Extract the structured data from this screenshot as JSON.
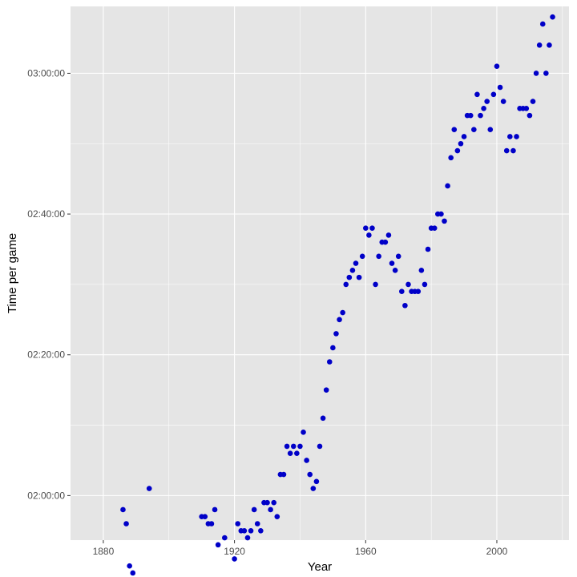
{
  "chart_data": {
    "type": "scatter",
    "title": "",
    "xlabel": "Year",
    "ylabel": "Time per game",
    "xlim": [
      1870,
      2022
    ],
    "ylim": [
      6820,
      11370
    ],
    "x_ticks": [
      1880,
      1920,
      1960,
      2000
    ],
    "x_tick_labels": [
      "1880",
      "1920",
      "1960",
      "2000"
    ],
    "x_minor_ticks": [
      1900,
      1940,
      1980,
      2020
    ],
    "y_ticks": [
      7200,
      8400,
      9600,
      10800
    ],
    "y_tick_labels": [
      "02:00:00",
      "02:20:00",
      "02:40:00",
      "03:00:00"
    ],
    "y_minor_ticks": [
      6600,
      7800,
      9000,
      10200,
      11400
    ],
    "y_unit": "seconds (displayed as hh:mm:ss)",
    "grid": true,
    "colors": {
      "panel_background": "#e5e5e5",
      "grid": "#ffffff",
      "point": "#0000c8",
      "tick": "#333333"
    },
    "series": [
      {
        "points": [
          [
            1886,
            7080
          ],
          [
            1887,
            6960
          ],
          [
            1888,
            6600
          ],
          [
            1889,
            6540
          ],
          [
            1894,
            7260
          ],
          [
            1910,
            7020
          ],
          [
            1911,
            7020
          ],
          [
            1912,
            6960
          ],
          [
            1913,
            6960
          ],
          [
            1914,
            7080
          ],
          [
            1915,
            6780
          ],
          [
            1917,
            6840
          ],
          [
            1920,
            6660
          ],
          [
            1921,
            6960
          ],
          [
            1922,
            6900
          ],
          [
            1923,
            6900
          ],
          [
            1924,
            6840
          ],
          [
            1925,
            6900
          ],
          [
            1926,
            7080
          ],
          [
            1927,
            6960
          ],
          [
            1928,
            6900
          ],
          [
            1929,
            7140
          ],
          [
            1930,
            7140
          ],
          [
            1931,
            7080
          ],
          [
            1932,
            7140
          ],
          [
            1933,
            7020
          ],
          [
            1934,
            7380
          ],
          [
            1935,
            7380
          ],
          [
            1936,
            7620
          ],
          [
            1937,
            7560
          ],
          [
            1938,
            7620
          ],
          [
            1939,
            7560
          ],
          [
            1940,
            7620
          ],
          [
            1941,
            7740
          ],
          [
            1942,
            7500
          ],
          [
            1943,
            7380
          ],
          [
            1944,
            7260
          ],
          [
            1945,
            7320
          ],
          [
            1946,
            7620
          ],
          [
            1947,
            7860
          ],
          [
            1948,
            8100
          ],
          [
            1949,
            8340
          ],
          [
            1950,
            8460
          ],
          [
            1951,
            8580
          ],
          [
            1952,
            8700
          ],
          [
            1953,
            8760
          ],
          [
            1954,
            9000
          ],
          [
            1955,
            9060
          ],
          [
            1956,
            9120
          ],
          [
            1957,
            9180
          ],
          [
            1958,
            9060
          ],
          [
            1959,
            9240
          ],
          [
            1960,
            9480
          ],
          [
            1961,
            9420
          ],
          [
            1962,
            9480
          ],
          [
            1963,
            9000
          ],
          [
            1964,
            9240
          ],
          [
            1965,
            9360
          ],
          [
            1966,
            9360
          ],
          [
            1967,
            9420
          ],
          [
            1968,
            9180
          ],
          [
            1969,
            9120
          ],
          [
            1970,
            9240
          ],
          [
            1971,
            8940
          ],
          [
            1972,
            8820
          ],
          [
            1973,
            9000
          ],
          [
            1974,
            8940
          ],
          [
            1975,
            8940
          ],
          [
            1976,
            8940
          ],
          [
            1977,
            9120
          ],
          [
            1978,
            9000
          ],
          [
            1979,
            9300
          ],
          [
            1980,
            9480
          ],
          [
            1981,
            9480
          ],
          [
            1982,
            9600
          ],
          [
            1983,
            9600
          ],
          [
            1984,
            9540
          ],
          [
            1985,
            9840
          ],
          [
            1986,
            10080
          ],
          [
            1987,
            10320
          ],
          [
            1988,
            10140
          ],
          [
            1989,
            10200
          ],
          [
            1990,
            10260
          ],
          [
            1991,
            10440
          ],
          [
            1992,
            10440
          ],
          [
            1993,
            10320
          ],
          [
            1994,
            10620
          ],
          [
            1995,
            10440
          ],
          [
            1996,
            10500
          ],
          [
            1997,
            10560
          ],
          [
            1998,
            10320
          ],
          [
            1999,
            10620
          ],
          [
            2000,
            10860
          ],
          [
            2001,
            10680
          ],
          [
            2002,
            10560
          ],
          [
            2003,
            10140
          ],
          [
            2004,
            10260
          ],
          [
            2005,
            10140
          ],
          [
            2006,
            10260
          ],
          [
            2007,
            10500
          ],
          [
            2008,
            10500
          ],
          [
            2009,
            10500
          ],
          [
            2010,
            10440
          ],
          [
            2011,
            10560
          ],
          [
            2012,
            10800
          ],
          [
            2013,
            11040
          ],
          [
            2014,
            11220
          ],
          [
            2015,
            10800
          ],
          [
            2016,
            11040
          ],
          [
            2017,
            11280
          ]
        ]
      }
    ]
  }
}
